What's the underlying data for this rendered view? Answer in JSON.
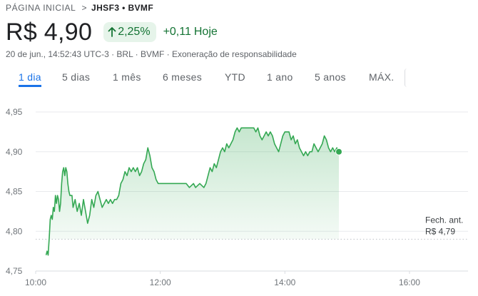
{
  "breadcrumb": {
    "home": "PÁGINA INICIAL",
    "separator": ">",
    "current": "JHSF3 • BVMF"
  },
  "quote": {
    "price": "R$ 4,90",
    "change_pct": "2,25%",
    "change_abs": "+0,11",
    "today_label": "Hoje",
    "meta": "20 de jun., 14:52:43 UTC-3 · BRL · BVMF · ",
    "disclaimer": "Exoneração de responsabilidade",
    "arrow_icon": "arrow-up-icon"
  },
  "tabs": [
    {
      "label": "1 dia",
      "active": true
    },
    {
      "label": "5 dias",
      "active": false
    },
    {
      "label": "1 mês",
      "active": false
    },
    {
      "label": "6 meses",
      "active": false
    },
    {
      "label": "YTD",
      "active": false
    },
    {
      "label": "1 ano",
      "active": false
    },
    {
      "label": "5 anos",
      "active": false
    },
    {
      "label": "MÁX.",
      "active": false
    }
  ],
  "colors": {
    "line": "#34a853",
    "fill": "#34a853",
    "grid": "#e8eaed",
    "prev_close": "#bdc1c6"
  },
  "chart_data": {
    "type": "line",
    "title": "",
    "xlabel": "",
    "ylabel": "",
    "ylim": [
      4.75,
      4.95
    ],
    "xlim": [
      "10:00",
      "17:00"
    ],
    "grid": true,
    "y_ticks": [
      "4,95",
      "4,90",
      "4,85",
      "4,80",
      "4,75"
    ],
    "y_tick_values": [
      4.95,
      4.9,
      4.85,
      4.8,
      4.75
    ],
    "x_ticks": [
      "10:00",
      "12:00",
      "14:00",
      "16:00"
    ],
    "previous_close": {
      "label_line1": "Fech. ant.",
      "label_line2": "R$ 4,79",
      "value": 4.79
    },
    "series": [
      {
        "points": [
          [
            "10:10",
            4.77
          ],
          [
            "10:11",
            4.775
          ],
          [
            "10:12",
            4.77
          ],
          [
            "10:13",
            4.79
          ],
          [
            "10:14",
            4.815
          ],
          [
            "10:15",
            4.82
          ],
          [
            "10:16",
            4.815
          ],
          [
            "10:17",
            4.83
          ],
          [
            "10:18",
            4.825
          ],
          [
            "10:19",
            4.845
          ],
          [
            "10:20",
            4.835
          ],
          [
            "10:21",
            4.845
          ],
          [
            "10:22",
            4.84
          ],
          [
            "10:23",
            4.825
          ],
          [
            "10:24",
            4.835
          ],
          [
            "10:25",
            4.86
          ],
          [
            "10:26",
            4.875
          ],
          [
            "10:27",
            4.88
          ],
          [
            "10:28",
            4.87
          ],
          [
            "10:29",
            4.88
          ],
          [
            "10:30",
            4.875
          ],
          [
            "10:31",
            4.86
          ],
          [
            "10:32",
            4.85
          ],
          [
            "10:33",
            4.845
          ],
          [
            "10:35",
            4.845
          ],
          [
            "10:36",
            4.83
          ],
          [
            "10:38",
            4.84
          ],
          [
            "10:40",
            4.825
          ],
          [
            "10:42",
            4.835
          ],
          [
            "10:44",
            4.82
          ],
          [
            "10:46",
            4.84
          ],
          [
            "10:48",
            4.825
          ],
          [
            "10:50",
            4.81
          ],
          [
            "10:52",
            4.82
          ],
          [
            "10:54",
            4.84
          ],
          [
            "10:56",
            4.83
          ],
          [
            "10:58",
            4.845
          ],
          [
            "11:00",
            4.85
          ],
          [
            "11:02",
            4.84
          ],
          [
            "11:04",
            4.83
          ],
          [
            "11:06",
            4.835
          ],
          [
            "11:08",
            4.84
          ],
          [
            "11:10",
            4.835
          ],
          [
            "11:12",
            4.84
          ],
          [
            "11:14",
            4.835
          ],
          [
            "11:16",
            4.84
          ],
          [
            "11:18",
            4.84
          ],
          [
            "11:20",
            4.845
          ],
          [
            "11:22",
            4.86
          ],
          [
            "11:24",
            4.865
          ],
          [
            "11:26",
            4.875
          ],
          [
            "11:28",
            4.87
          ],
          [
            "11:30",
            4.88
          ],
          [
            "11:32",
            4.875
          ],
          [
            "11:34",
            4.88
          ],
          [
            "11:36",
            4.875
          ],
          [
            "11:38",
            4.88
          ],
          [
            "11:40",
            4.87
          ],
          [
            "11:42",
            4.875
          ],
          [
            "11:44",
            4.885
          ],
          [
            "11:46",
            4.89
          ],
          [
            "11:48",
            4.905
          ],
          [
            "11:50",
            4.895
          ],
          [
            "11:52",
            4.88
          ],
          [
            "11:54",
            4.875
          ],
          [
            "11:56",
            4.865
          ],
          [
            "11:58",
            4.86
          ],
          [
            "12:00",
            4.86
          ],
          [
            "12:15",
            4.86
          ],
          [
            "12:25",
            4.86
          ],
          [
            "12:28",
            4.855
          ],
          [
            "12:32",
            4.86
          ],
          [
            "12:34",
            4.855
          ],
          [
            "12:38",
            4.86
          ],
          [
            "12:42",
            4.855
          ],
          [
            "12:44",
            4.86
          ],
          [
            "12:46",
            4.87
          ],
          [
            "12:48",
            4.88
          ],
          [
            "12:50",
            4.875
          ],
          [
            "12:52",
            4.885
          ],
          [
            "12:54",
            4.88
          ],
          [
            "12:56",
            4.89
          ],
          [
            "12:58",
            4.9
          ],
          [
            "13:00",
            4.905
          ],
          [
            "13:02",
            4.9
          ],
          [
            "13:04",
            4.91
          ],
          [
            "13:06",
            4.905
          ],
          [
            "13:08",
            4.91
          ],
          [
            "13:10",
            4.915
          ],
          [
            "13:12",
            4.925
          ],
          [
            "13:14",
            4.93
          ],
          [
            "13:16",
            4.925
          ],
          [
            "13:18",
            4.93
          ],
          [
            "13:24",
            4.93
          ],
          [
            "13:30",
            4.93
          ],
          [
            "13:32",
            4.925
          ],
          [
            "13:34",
            4.93
          ],
          [
            "13:36",
            4.92
          ],
          [
            "13:38",
            4.915
          ],
          [
            "13:40",
            4.92
          ],
          [
            "13:42",
            4.925
          ],
          [
            "13:44",
            4.92
          ],
          [
            "13:46",
            4.925
          ],
          [
            "13:48",
            4.92
          ],
          [
            "13:50",
            4.91
          ],
          [
            "13:52",
            4.905
          ],
          [
            "13:54",
            4.9
          ],
          [
            "13:56",
            4.91
          ],
          [
            "13:58",
            4.92
          ],
          [
            "14:00",
            4.925
          ],
          [
            "14:04",
            4.925
          ],
          [
            "14:06",
            4.915
          ],
          [
            "14:08",
            4.92
          ],
          [
            "14:10",
            4.91
          ],
          [
            "14:12",
            4.915
          ],
          [
            "14:14",
            4.905
          ],
          [
            "14:16",
            4.9
          ],
          [
            "14:18",
            4.895
          ],
          [
            "14:20",
            4.9
          ],
          [
            "14:22",
            4.895
          ],
          [
            "14:24",
            4.9
          ],
          [
            "14:26",
            4.9
          ],
          [
            "14:28",
            4.91
          ],
          [
            "14:30",
            4.905
          ],
          [
            "14:32",
            4.9
          ],
          [
            "14:34",
            4.905
          ],
          [
            "14:36",
            4.91
          ],
          [
            "14:38",
            4.92
          ],
          [
            "14:40",
            4.915
          ],
          [
            "14:42",
            4.905
          ],
          [
            "14:44",
            4.9
          ],
          [
            "14:46",
            4.905
          ],
          [
            "14:48",
            4.9
          ],
          [
            "14:50",
            4.905
          ],
          [
            "14:52",
            4.9
          ]
        ]
      }
    ]
  }
}
